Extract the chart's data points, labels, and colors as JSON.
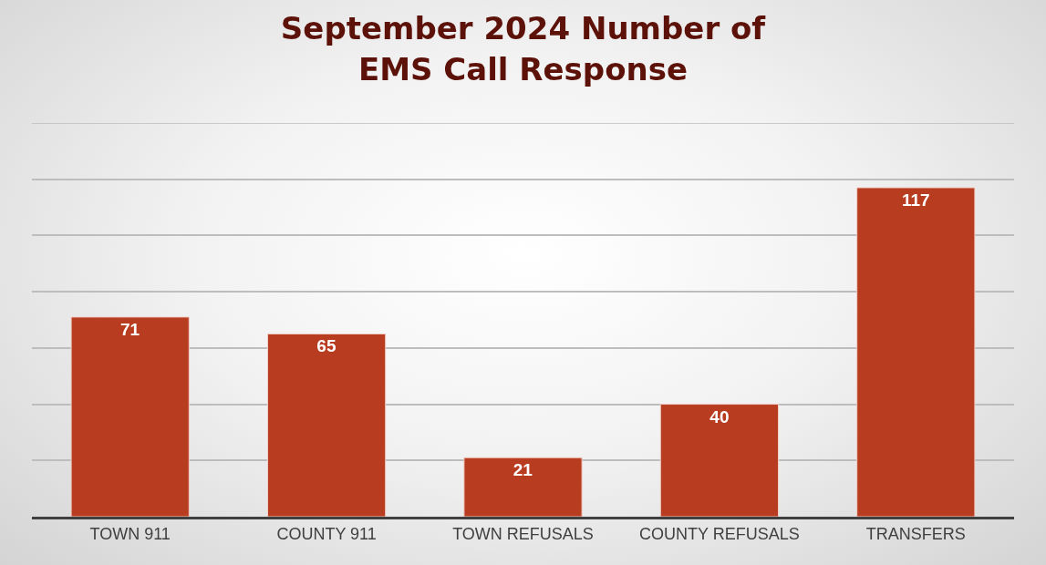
{
  "chart_data": {
    "type": "bar",
    "title": "September 2024 Number of\nEMS Call Response",
    "categories": [
      "TOWN 911",
      "COUNTY 911",
      "TOWN REFUSALS",
      "COUNTY REFUSALS",
      "TRANSFERS"
    ],
    "values": [
      71,
      65,
      21,
      40,
      117
    ],
    "color": "#b83c20",
    "ylim": [
      0,
      140
    ],
    "yticks": [
      {
        "value": 0,
        "label": null
      },
      {
        "value": 20,
        "label": null
      },
      {
        "value": 40,
        "label": null
      },
      {
        "value": 60,
        "label": null
      },
      {
        "value": 80,
        "label": null
      },
      {
        "value": 100,
        "label": null
      },
      {
        "value": 120,
        "label": null
      },
      {
        "value": 140,
        "label": null
      }
    ],
    "grid": "y",
    "data_labels": true,
    "tick_labels": "x"
  }
}
